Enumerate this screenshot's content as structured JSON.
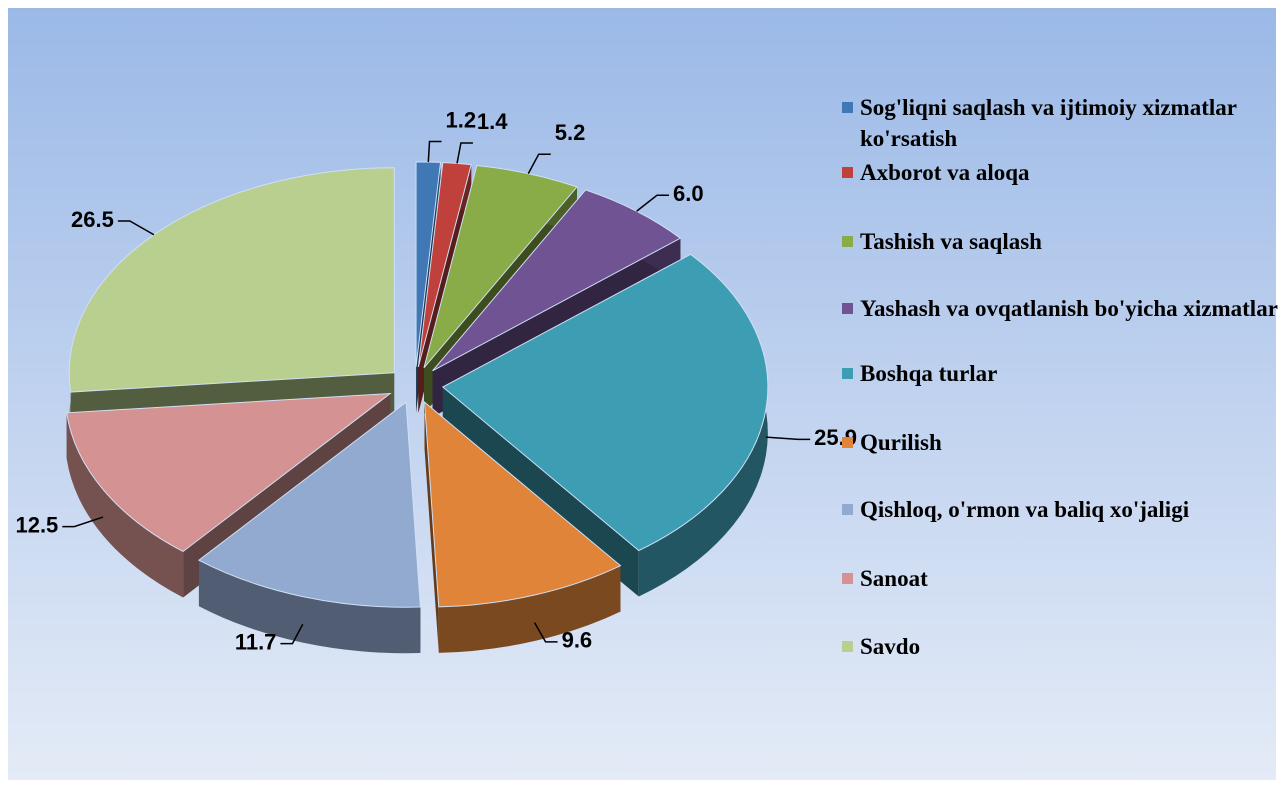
{
  "chart_data": {
    "type": "pie",
    "categories": [
      "Sog'liqni saqlash va ijtimoiy xizmatlar ko'rsatish",
      "Axborot va aloqa",
      "Tashish va saqlash",
      "Yashash va ovqatlanish bo'yicha xizmatlar",
      "Boshqa turlar",
      "Qurilish",
      "Qishloq, o'rmon va baliq xo'jaligi",
      "Sanoat",
      "Savdo"
    ],
    "values": [
      1.2,
      1.4,
      5.2,
      6.0,
      25.9,
      9.6,
      11.7,
      12.5,
      26.5
    ],
    "value_labels": [
      "1.2",
      "1.4",
      "5.2",
      "6.0",
      "25.9",
      "9.6",
      "11.7",
      "12.5",
      "26.5"
    ],
    "colors": [
      "#3f78b5",
      "#c0413c",
      "#8aac48",
      "#6f5393",
      "#3d9db3",
      "#e0843a",
      "#92a9d0",
      "#d49392",
      "#b9cf8f"
    ],
    "legend": "right"
  }
}
